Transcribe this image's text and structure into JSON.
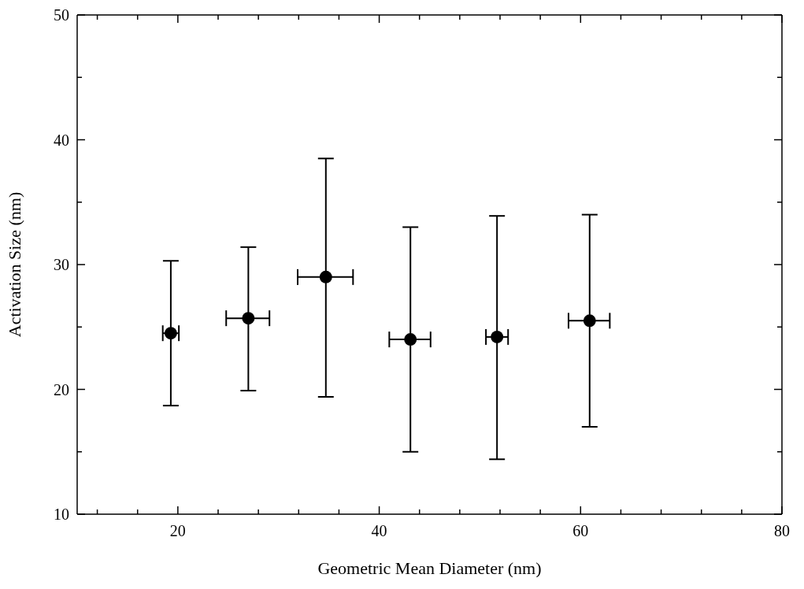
{
  "chart_data": {
    "type": "scatter",
    "xlabel": "Geometric Mean Diameter (nm)",
    "ylabel": "Activation Size (nm)",
    "x": [
      19.3,
      27.0,
      34.7,
      43.1,
      51.7,
      60.9
    ],
    "values": [
      24.5,
      25.7,
      29.0,
      24.0,
      24.2,
      25.5
    ],
    "errors": [
      [
        18.7,
        30.3
      ],
      [
        19.9,
        31.4
      ],
      [
        19.4,
        38.5
      ],
      [
        15.0,
        33.0
      ],
      [
        14.4,
        33.9
      ],
      [
        17.0,
        34.0
      ]
    ],
    "xerrors": [
      [
        18.5,
        20.1
      ],
      [
        24.8,
        29.1
      ],
      [
        31.9,
        37.4
      ],
      [
        41.0,
        45.1
      ],
      [
        50.6,
        52.8
      ],
      [
        58.8,
        62.9
      ]
    ],
    "color": "#000000",
    "marker": "circle",
    "grid": false,
    "legend": false,
    "xlim": [
      10,
      80
    ],
    "ylim": [
      10,
      50
    ],
    "xticks": [
      {
        "value": 12,
        "label": null
      },
      {
        "value": 16,
        "label": null
      },
      20,
      {
        "value": 24,
        "label": null
      },
      {
        "value": 28,
        "label": null
      },
      {
        "value": 32,
        "label": null
      },
      {
        "value": 36,
        "label": null
      },
      40,
      {
        "value": 44,
        "label": null
      },
      {
        "value": 48,
        "label": null
      },
      {
        "value": 52,
        "label": null
      },
      {
        "value": 56,
        "label": null
      },
      60,
      {
        "value": 64,
        "label": null
      },
      {
        "value": 68,
        "label": null
      },
      {
        "value": 72,
        "label": null
      },
      {
        "value": 76,
        "label": null
      },
      80
    ],
    "yticks": [
      10,
      {
        "value": 15,
        "label": null
      },
      20,
      {
        "value": 25,
        "label": null
      },
      30,
      {
        "value": 35,
        "label": null
      },
      40,
      {
        "value": 45,
        "label": null
      },
      50
    ]
  }
}
